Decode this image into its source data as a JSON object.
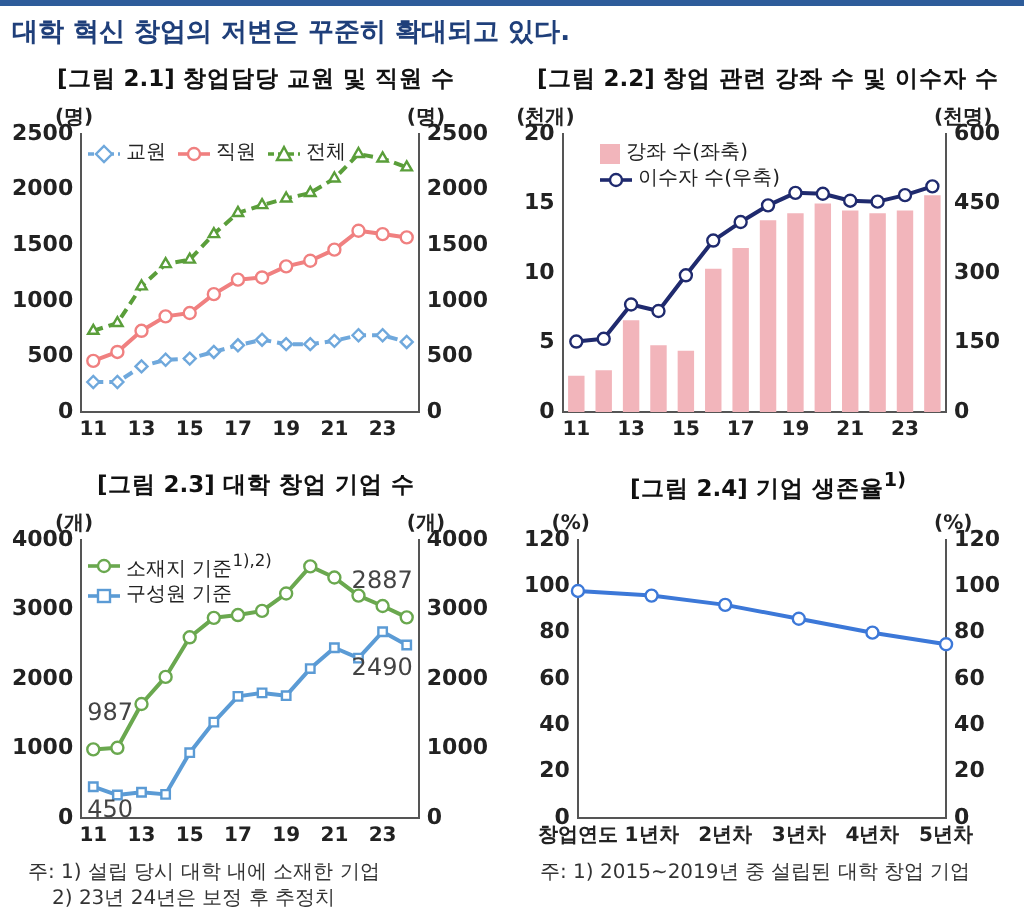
{
  "chart_data": [
    {
      "type": "other",
      "title": "대학 혁신 창업의 저변은 꾸준히 확대되고 있다."
    },
    {
      "type": "line",
      "title": "[그림 2.1] 창업담당 교원 및 직원 수",
      "ylabel": "(명)",
      "y2label": "(명)",
      "categories": [
        "11",
        null,
        "13",
        null,
        "15",
        null,
        "17",
        null,
        "19",
        null,
        "21",
        null,
        "23",
        null
      ],
      "series": [
        {
          "name": "교원",
          "color": "#6fa8dc",
          "marker": "diamond",
          "line_style": "dashed",
          "values": [
            270,
            270,
            410,
            470,
            480,
            540,
            600,
            650,
            610,
            610,
            640,
            690,
            690,
            630
          ]
        },
        {
          "name": "직원",
          "color": "#f08080",
          "marker": "circle",
          "line_style": "solid",
          "values": [
            460,
            540,
            730,
            860,
            890,
            1060,
            1190,
            1210,
            1310,
            1360,
            1460,
            1630,
            1600,
            1570
          ]
        },
        {
          "name": "전체",
          "color": "#5a9e3a",
          "marker": "triangle",
          "line_style": "dashed",
          "values": [
            730,
            800,
            1130,
            1330,
            1370,
            1600,
            1790,
            1860,
            1920,
            1970,
            2100,
            2320,
            2280,
            2200
          ]
        }
      ],
      "ylim": [
        0,
        2500
      ],
      "yticks": [
        0,
        500,
        1000,
        1500,
        2000,
        2500
      ],
      "y2lim": [
        0,
        2500
      ],
      "y2ticks": [
        0,
        500,
        1000,
        1500,
        2000,
        2500
      ],
      "grid": false,
      "legend": "top left"
    },
    {
      "type": "bar",
      "title": "[그림 2.2] 창업 관련 강좌 수 및 이수자 수",
      "ylabel": "(천개)",
      "y2label": "(천명)",
      "categories": [
        "11",
        null,
        "13",
        null,
        "15",
        null,
        "17",
        null,
        "19",
        null,
        "21",
        null,
        "23",
        null
      ],
      "series": [
        {
          "name": "강좌 수(좌축)",
          "color": "#f2b5bb",
          "values": [
            2.6,
            3.0,
            6.6,
            4.8,
            4.4,
            10.3,
            11.8,
            13.8,
            14.3,
            15.0,
            14.5,
            14.3,
            14.5,
            15.6
          ]
        },
        {
          "name": "이수자 수(우축)",
          "type": "line",
          "axis": "y2",
          "color": "#1f2a6e",
          "marker": "circle",
          "line_style": "solid",
          "values": [
            152,
            158,
            232,
            218,
            295,
            370,
            410,
            446,
            473,
            471,
            456,
            454,
            468,
            487
          ]
        }
      ],
      "ylim": [
        0,
        20
      ],
      "yticks": [
        0,
        5,
        10,
        15,
        20
      ],
      "y2lim": [
        0,
        600
      ],
      "y2ticks": [
        0,
        150,
        300,
        450,
        600
      ],
      "grid": false,
      "legend": "top left"
    },
    {
      "type": "line",
      "title": "[그림 2.3] 대학 창업 기업 수",
      "ylabel": "(개)",
      "y2label": "(개)",
      "categories": [
        "11",
        null,
        "13",
        null,
        "15",
        null,
        "17",
        null,
        "19",
        null,
        "21",
        null,
        "23",
        null
      ],
      "series": [
        {
          "name": "소재지 기준$^{1),2)}$",
          "color": "#6aa84f",
          "marker": "circle",
          "line_style": "solid",
          "values": [
            987,
            1010,
            1640,
            2030,
            2600,
            2880,
            2920,
            2980,
            3230,
            3620,
            3460,
            3200,
            3050,
            2887
          ],
          "value_labels": [
            "987",
            null,
            null,
            null,
            null,
            null,
            null,
            null,
            null,
            null,
            null,
            null,
            null,
            "2887"
          ]
        },
        {
          "name": "구성원 기준",
          "color": "#5b9bd5",
          "marker": "square",
          "line_style": "solid",
          "values": [
            450,
            330,
            370,
            340,
            940,
            1380,
            1750,
            1800,
            1760,
            2150,
            2450,
            2300,
            2680,
            2490
          ],
          "value_labels": [
            "450",
            null,
            null,
            null,
            null,
            null,
            null,
            null,
            null,
            null,
            null,
            null,
            null,
            "2490"
          ]
        }
      ],
      "ylim": [
        0,
        4000
      ],
      "yticks": [
        0,
        1000,
        2000,
        3000,
        4000
      ],
      "y2lim": [
        0,
        4000
      ],
      "y2ticks": [
        0,
        1000,
        2000,
        3000,
        4000
      ],
      "grid": false,
      "legend": "top left",
      "annotations": [
        "주: 1) 설립 당시 대학 내에 소재한 기업",
        "2) 23년 24년은 보정 후 추정치"
      ]
    },
    {
      "type": "line",
      "title": "[그림 2.4] 기업 생존율$^{1)}$",
      "ylabel": "(%)",
      "y2label": "(%)",
      "categories": [
        "창업연도",
        "1년차",
        "2년차",
        "3년차",
        "4년차",
        "5년차"
      ],
      "series": [
        {
          "color": "#3c78d8",
          "marker": "circle",
          "line_style": "solid",
          "values": [
            98,
            96,
            92,
            86,
            80,
            75
          ]
        }
      ],
      "ylim": [
        0,
        120
      ],
      "yticks": [
        0,
        20,
        40,
        60,
        80,
        100,
        120
      ],
      "y2lim": [
        0,
        120
      ],
      "y2ticks": [
        0,
        20,
        40,
        60,
        80,
        100,
        120
      ],
      "grid": false,
      "legend": false,
      "annotations": [
        "주: 1) 2015~2019년 중 설립된 대학 창업 기업"
      ]
    }
  ]
}
